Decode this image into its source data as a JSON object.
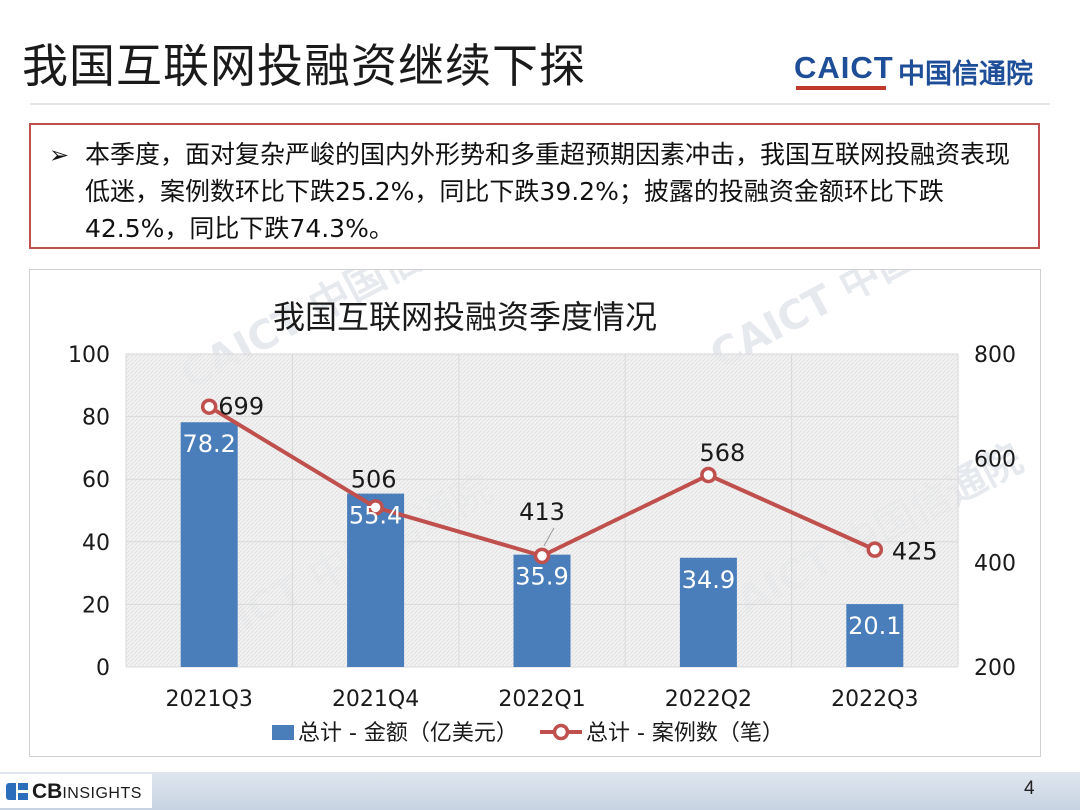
{
  "slide": {
    "title": "我国互联网投融资继续下探",
    "logo_text": "CAICT",
    "logo_cn": "中国信通院",
    "summary_bullet": "➢",
    "summary": "本季度，面对复杂严峻的国内外形势和多重超预期因素冲击，我国互联网投融资表现低迷，案例数环比下跌25.2%，同比下跌39.2%；披露的投融资金额环比下跌42.5%，同比下跌74.3%。",
    "footer_brand_bold": "CB",
    "footer_brand": "INSIGHTS",
    "page_number": "4"
  },
  "watermark": "CAICT 中国信通院",
  "colors": {
    "bar": "#4a7ebb",
    "line": "#c0504d",
    "accent_border": "#c0504d",
    "brand_blue": "#1f4e99"
  },
  "chart_data": {
    "type": "bar+line",
    "title": "我国互联网投融资季度情况",
    "categories": [
      "2021Q3",
      "2021Q4",
      "2022Q1",
      "2022Q2",
      "2022Q3"
    ],
    "series": [
      {
        "name": "总计 - 金额（亿美元）",
        "type": "bar",
        "axis": "left",
        "values": [
          78.2,
          55.4,
          35.9,
          34.9,
          20.1
        ],
        "labels": [
          "78.2",
          "55.4",
          "35.9",
          "34.9",
          "20.1"
        ]
      },
      {
        "name": "总计 - 案例数（笔）",
        "type": "line",
        "axis": "right",
        "values": [
          699,
          506,
          413,
          568,
          425
        ],
        "labels": [
          "699",
          "506",
          "413",
          "568",
          "425"
        ]
      }
    ],
    "y_left": {
      "min": 0,
      "max": 100,
      "ticks": [
        0,
        20,
        40,
        60,
        80,
        100
      ],
      "tick_labels": [
        "0",
        "20",
        "40",
        "60",
        "80",
        "100"
      ]
    },
    "y_right": {
      "min": 200,
      "max": 800,
      "ticks": [
        200,
        400,
        600,
        800
      ],
      "tick_labels": [
        "200",
        "400",
        "600",
        "800"
      ]
    },
    "grid": true,
    "legend_position": "bottom"
  }
}
